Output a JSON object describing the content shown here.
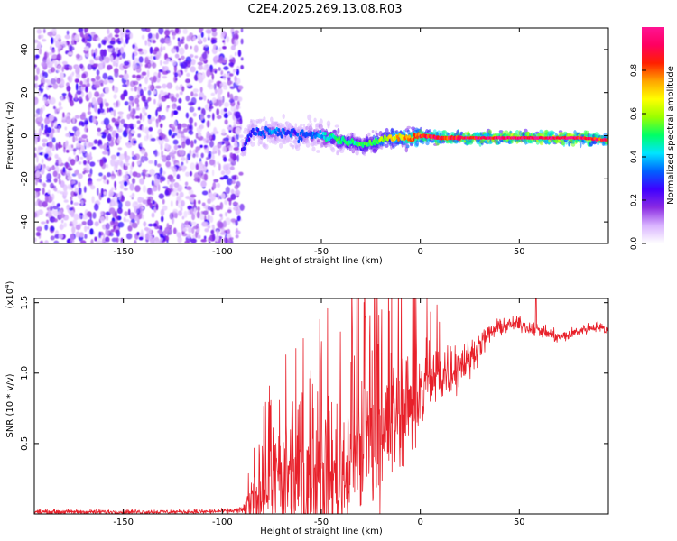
{
  "page": {
    "title": "C2E4.2025.269.13.08.R03"
  },
  "colors": {
    "snr_line": "#e8202a",
    "frame": "#000000",
    "background": "#ffffff"
  },
  "chart_data": [
    {
      "type": "heatmap",
      "name": "spectrogram",
      "title": "C2E4.2025.269.13.08.R03",
      "xlabel": "Height of straight line (km)",
      "ylabel": "Frequency (Hz)",
      "xlim": [
        -195,
        95
      ],
      "ylim": [
        -50,
        50
      ],
      "xticks": [
        -150,
        -100,
        -50,
        0,
        50
      ],
      "xtick_labels": [
        "-150",
        "-100",
        "-50",
        "0",
        "50"
      ],
      "yticks": [
        -40,
        -20,
        0,
        20,
        40
      ],
      "ytick_labels": [
        "-40",
        "-20",
        "0",
        "20",
        "40"
      ],
      "noise_region_x": [
        -195,
        -90
      ],
      "ridge": {
        "x": [
          -90,
          -85,
          -80,
          -75,
          -70,
          -65,
          -60,
          -55,
          -50,
          -45,
          -40,
          -35,
          -30,
          -25,
          -20,
          -15,
          -10,
          -5,
          0,
          10,
          20,
          30,
          40,
          50,
          60,
          70,
          80,
          95
        ],
        "freq": [
          -6,
          2,
          1,
          2,
          2,
          1,
          0,
          1,
          0,
          -1,
          -2,
          -3,
          -4,
          -3,
          -2,
          -1,
          -1,
          -1,
          0,
          -1,
          -1,
          -1,
          -1,
          -1,
          -1,
          -1,
          -1,
          -2
        ],
        "amplitude": [
          0.25,
          0.3,
          0.3,
          0.35,
          0.32,
          0.3,
          0.3,
          0.35,
          0.4,
          0.45,
          0.5,
          0.45,
          0.5,
          0.5,
          0.6,
          0.65,
          0.7,
          0.75,
          0.85,
          0.9,
          0.9,
          0.92,
          0.95,
          0.95,
          0.95,
          0.95,
          0.92,
          0.85
        ]
      },
      "colorbar": {
        "label": "Normalized spectral amplitude",
        "ticks": [
          0.0,
          0.2,
          0.4,
          0.6,
          0.8
        ],
        "tick_labels": [
          "0.0",
          "0.2",
          "0.4",
          "0.6",
          "0.8"
        ],
        "range": [
          0,
          1
        ],
        "colors": [
          "#ffffff",
          "#d9b3ff",
          "#8a2be2",
          "#3f00ff",
          "#0060ff",
          "#00e5ff",
          "#00ff66",
          "#99ff00",
          "#ffff00",
          "#ffa500",
          "#ff2000",
          "#ff0060",
          "#ff1493"
        ]
      }
    },
    {
      "type": "line",
      "name": "snr",
      "xlabel": "Height of straight line (km)",
      "ylabel": "SNR (10 * v/v)",
      "exponent_label": "(x10",
      "exponent_power": "4",
      "exponent_close": ")",
      "xlim": [
        -195,
        95
      ],
      "ylim": [
        0,
        15300
      ],
      "xticks": [
        -150,
        -100,
        -50,
        0,
        50
      ],
      "xtick_labels": [
        "-150",
        "-100",
        "-50",
        "0",
        "50"
      ],
      "yticks": [
        5000,
        10000,
        15000
      ],
      "ytick_labels": [
        "0.5",
        "1.0",
        "1.5"
      ],
      "trend_x": [
        -195,
        -150,
        -110,
        -90,
        -85,
        -80,
        -75,
        -70,
        -65,
        -60,
        -55,
        -50,
        -45,
        -40,
        -35,
        -30,
        -25,
        -20,
        -15,
        -10,
        -5,
        0,
        5,
        10,
        15,
        20,
        25,
        30,
        35,
        40,
        45,
        50,
        55,
        60,
        65,
        70,
        75,
        80,
        85,
        90,
        95
      ],
      "trend_y": [
        150,
        150,
        150,
        250,
        800,
        1700,
        2200,
        2400,
        2500,
        2200,
        2000,
        3000,
        2800,
        3000,
        4000,
        4500,
        5000,
        5500,
        6500,
        7500,
        8000,
        8500,
        9000,
        9800,
        10300,
        10700,
        11000,
        12000,
        12800,
        13300,
        13400,
        13500,
        13200,
        13000,
        12800,
        12500,
        12700,
        13000,
        13200,
        13300,
        13000
      ],
      "amplitude_x": [
        -195,
        -95,
        -90,
        -85,
        -80,
        -70,
        -60,
        -50,
        -40,
        -30,
        -20,
        -10,
        0,
        10,
        20,
        30,
        40,
        60,
        95
      ],
      "amplitude_y": [
        150,
        150,
        300,
        1500,
        2500,
        3500,
        4000,
        4500,
        5000,
        5500,
        4500,
        3800,
        3000,
        2200,
        1500,
        800,
        500,
        400,
        300
      ]
    }
  ]
}
